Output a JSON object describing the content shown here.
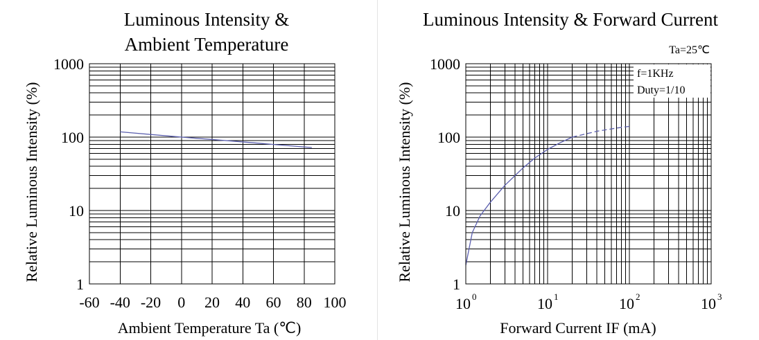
{
  "chart_data": [
    {
      "type": "line",
      "title_lines": [
        "Luminous Intensity &",
        "Ambient Temperature"
      ],
      "xlabel": "Ambient Temperature Ta (℃)",
      "ylabel": "Relative Luminous Intensity (%)",
      "xlim": [
        -60,
        100
      ],
      "ylim": [
        1,
        1000
      ],
      "yscale": "log",
      "grid": true,
      "x_ticks": [
        -60,
        -40,
        -20,
        0,
        20,
        40,
        60,
        80,
        100
      ],
      "x_tick_labels": [
        "-60",
        "-40",
        "-20",
        "0",
        "20",
        "40",
        "60",
        "80",
        "100"
      ],
      "y_tick_labels": [
        "1",
        "10",
        "100",
        "1000"
      ],
      "series": [
        {
          "color": "#5b5fae",
          "x": [
            -40,
            0,
            40,
            85
          ],
          "y": [
            118,
            100,
            86,
            72
          ]
        }
      ]
    },
    {
      "type": "line",
      "title_lines": [
        "Luminous Intensity & Forward Current"
      ],
      "xlabel": "Forward Current IF (mA)",
      "ylabel": "Relative Luminous Intensity (%)",
      "xlim": [
        1,
        1000
      ],
      "ylim": [
        1,
        1000
      ],
      "xscale": "log",
      "yscale": "log",
      "grid": true,
      "x_tick_labels": [
        {
          "base": "10",
          "exp": "0"
        },
        {
          "base": "10",
          "exp": "1"
        },
        {
          "base": "10",
          "exp": "2"
        },
        {
          "base": "10",
          "exp": "3"
        }
      ],
      "y_tick_labels": [
        "1",
        "10",
        "100",
        "1000"
      ],
      "annotations": [
        "Ta=25℃",
        "f=1KHz",
        "Duty=1/10"
      ],
      "series": [
        {
          "color": "#5b5fae",
          "x": [
            1,
            1.2,
            1.5,
            2,
            3,
            5,
            7,
            10,
            14,
            20
          ],
          "y": [
            1.8,
            5,
            8.5,
            13,
            22,
            38,
            52,
            68,
            83,
            100
          ],
          "style": "solid"
        },
        {
          "color": "#5b5fae",
          "x": [
            20,
            40,
            70,
            100
          ],
          "y": [
            100,
            120,
            133,
            140
          ],
          "style": "dashed"
        }
      ]
    }
  ]
}
